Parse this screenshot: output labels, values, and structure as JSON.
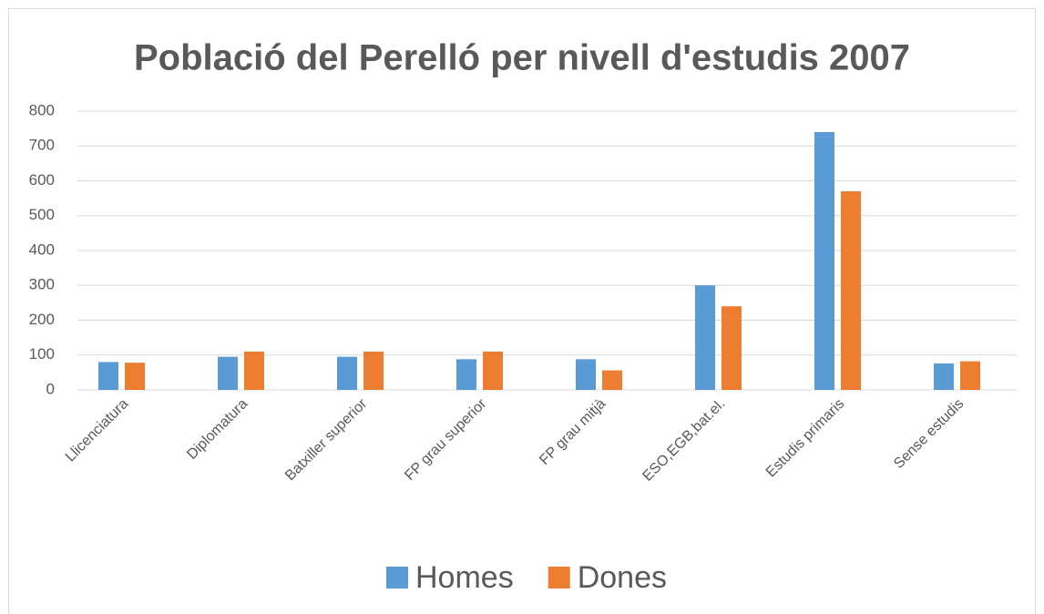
{
  "chart_data": {
    "type": "bar",
    "title": "Població del Perelló per nivell d'estudis 2007",
    "categories": [
      "Llicenciatura",
      "Diplomatura",
      "Batxiller superior",
      "FP grau superior",
      "FP grau mitjà",
      "ESO,EGB,bat.el.",
      "Estudis primaris",
      "Sense estudis"
    ],
    "series": [
      {
        "name": "Homes",
        "color": "#5b9bd5",
        "values": [
          80,
          95,
          95,
          88,
          88,
          300,
          740,
          76
        ]
      },
      {
        "name": "Dones",
        "color": "#ed7d31",
        "values": [
          78,
          110,
          110,
          110,
          56,
          240,
          570,
          82
        ]
      }
    ],
    "ylim": [
      0,
      800
    ],
    "yticks": [
      0,
      100,
      200,
      300,
      400,
      500,
      600,
      700,
      800
    ],
    "grid": true,
    "legend": "bottom"
  }
}
